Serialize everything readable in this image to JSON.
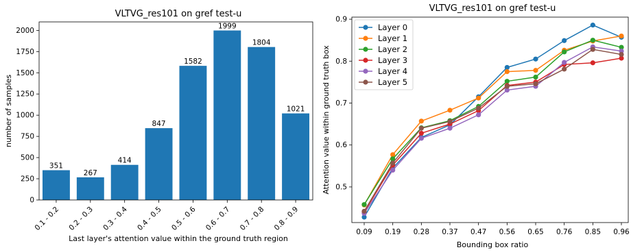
{
  "chart_data": [
    {
      "type": "bar",
      "title": "VLTVG_res101 on gref test-u",
      "xlabel": "Last layer's attention value within the ground truth region",
      "ylabel": "number of samples",
      "categories": [
        "0.1 - 0.2",
        "0.2 - 0.3",
        "0.3 - 0.4",
        "0.4 - 0.5",
        "0.5 - 0.6",
        "0.6 - 0.7",
        "0.7 - 0.8",
        "0.8 - 0.9"
      ],
      "values": [
        351,
        267,
        414,
        847,
        1582,
        1999,
        1804,
        1021
      ],
      "data_labels": [
        "351",
        "267",
        "414",
        "847",
        "1582",
        "1999",
        "1804",
        "1021"
      ],
      "yticks": [
        "0",
        "250",
        "500",
        "750",
        "1000",
        "1250",
        "1500",
        "1750",
        "2000"
      ],
      "ylim": [
        0,
        2100
      ],
      "color": "#1f77b4",
      "grid": false
    },
    {
      "type": "line",
      "title": "VLTVG_res101 on gref test-u",
      "xlabel": "Bounding box ratio",
      "ylabel": "Attention value within ground truth box",
      "categories": [
        "0.09",
        "0.19",
        "0.28",
        "0.37",
        "0.47",
        "0.56",
        "0.65",
        "0.76",
        "0.85",
        "0.96"
      ],
      "yticks": [
        "0.5",
        "0.6",
        "0.7",
        "0.8",
        "0.9"
      ],
      "ylim": [
        0.415,
        0.905
      ],
      "legend_position": "upper-left",
      "grid": false,
      "series": [
        {
          "name": "Layer 0",
          "color": "#1f77b4",
          "values": [
            0.428,
            0.545,
            0.618,
            0.648,
            0.715,
            0.785,
            0.805,
            0.849,
            0.886,
            0.857
          ]
        },
        {
          "name": "Layer 1",
          "color": "#ff7f0e",
          "values": [
            0.457,
            0.577,
            0.657,
            0.683,
            0.712,
            0.775,
            0.778,
            0.826,
            0.848,
            0.86
          ]
        },
        {
          "name": "Layer 2",
          "color": "#2ca02c",
          "values": [
            0.458,
            0.567,
            0.641,
            0.658,
            0.692,
            0.752,
            0.762,
            0.822,
            0.85,
            0.833
          ]
        },
        {
          "name": "Layer 3",
          "color": "#d62728",
          "values": [
            0.44,
            0.552,
            0.628,
            0.65,
            0.682,
            0.742,
            0.75,
            0.792,
            0.796,
            0.807
          ]
        },
        {
          "name": "Layer 4",
          "color": "#9467bd",
          "values": [
            0.437,
            0.54,
            0.616,
            0.64,
            0.672,
            0.731,
            0.74,
            0.797,
            0.834,
            0.824
          ]
        },
        {
          "name": "Layer 5",
          "color": "#8c564b",
          "values": [
            0.442,
            0.557,
            0.64,
            0.656,
            0.688,
            0.74,
            0.746,
            0.781,
            0.828,
            0.816
          ]
        }
      ]
    }
  ]
}
